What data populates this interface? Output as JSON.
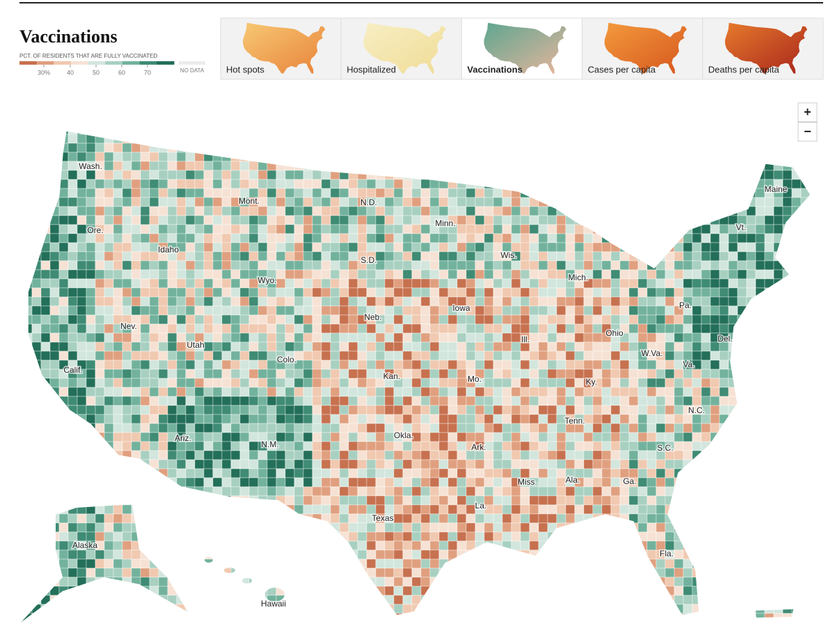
{
  "header": {
    "title": "Vaccinations"
  },
  "legend": {
    "caption": "PCT. OF RESIDENTS THAT ARE FULLY VACCINATED",
    "ticks": [
      "30%",
      "40",
      "50",
      "60",
      "70"
    ],
    "no_data": "NO DATA"
  },
  "tabs": [
    {
      "label": "Hot spots"
    },
    {
      "label": "Hospitalized"
    },
    {
      "label": "Vaccinations"
    },
    {
      "label": "Cases per capita"
    },
    {
      "label": "Deaths per capita"
    }
  ],
  "zoom": [
    "+",
    "−"
  ],
  "map": {
    "labels": [
      "Wash.",
      "Ore.",
      "Calif.",
      "Nev.",
      "Idaho",
      "Mont.",
      "Wyo.",
      "Utah",
      "Colo.",
      "Ariz.",
      "N.M.",
      "N.D.",
      "S.D.",
      "Neb.",
      "Kan.",
      "Okla.",
      "Texas",
      "Minn.",
      "Iowa",
      "Mo.",
      "Ark.",
      "La.",
      "Wis.",
      "Ill.",
      "Mich.",
      "Ohio",
      "Ky.",
      "Tenn.",
      "Miss.",
      "Ala.",
      "Ga.",
      "Fla.",
      "S.C.",
      "N.C.",
      "Va.",
      "W.Va.",
      "Pa.",
      "Vt.",
      "Maine",
      "Del.",
      "Alaska",
      "Hawaii"
    ]
  }
}
